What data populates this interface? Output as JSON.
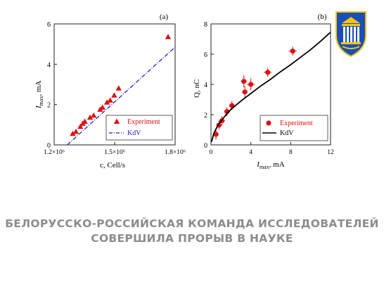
{
  "chart_data": [
    {
      "type": "scatter",
      "panel_label": "(a)",
      "xlabel": "c, Cell/s",
      "ylabel_main": "I",
      "ylabel_sub": "max",
      "ylabel_rest": ", mA",
      "xlim": [
        1200000,
        1800000
      ],
      "ylim": [
        0,
        6
      ],
      "xticks": [
        {
          "v": 1200000,
          "label": "1.2×10⁶"
        },
        {
          "v": 1500000,
          "label": "1.5×10⁶"
        },
        {
          "v": 1800000,
          "label": "1.8×10⁶"
        }
      ],
      "yticks": [
        {
          "v": 0,
          "label": "0"
        },
        {
          "v": 2,
          "label": "2"
        },
        {
          "v": 4,
          "label": "4"
        },
        {
          "v": 6,
          "label": "6"
        }
      ],
      "series": [
        {
          "name": "Experiment",
          "kind": "triangles",
          "color": "#dd1111",
          "points": [
            [
              1292000,
              0.55
            ],
            [
              1308000,
              0.65
            ],
            [
              1330000,
              0.9
            ],
            [
              1342000,
              1.05
            ],
            [
              1352000,
              1.15
            ],
            [
              1378000,
              1.35
            ],
            [
              1396000,
              1.45
            ],
            [
              1428000,
              1.75
            ],
            [
              1440000,
              1.85
            ],
            [
              1462000,
              2.1
            ],
            [
              1478000,
              2.2
            ],
            [
              1498000,
              2.45
            ],
            [
              1520000,
              2.8
            ],
            [
              1765000,
              5.35
            ]
          ]
        },
        {
          "name": "KdV",
          "kind": "dashdot-line",
          "color": "#2222cc",
          "points": [
            [
              1265000,
              0
            ],
            [
              1800000,
              4.85
            ]
          ]
        }
      ],
      "legend": "bottom-right"
    },
    {
      "type": "scatter",
      "panel_label": "(b)",
      "xlabel_main": "I",
      "xlabel_sub": "max",
      "xlabel_rest": ", mA",
      "ylabel": "Q, nC",
      "xlim": [
        0,
        12
      ],
      "ylim": [
        0,
        8
      ],
      "xticks": [
        {
          "v": 0,
          "label": "0"
        },
        {
          "v": 4,
          "label": "4"
        },
        {
          "v": 8,
          "label": "8"
        },
        {
          "v": 12,
          "label": "12"
        }
      ],
      "yticks": [
        {
          "v": 0,
          "label": "0"
        },
        {
          "v": 2,
          "label": "2"
        },
        {
          "v": 4,
          "label": "4"
        },
        {
          "v": 6,
          "label": "6"
        },
        {
          "v": 8,
          "label": "8"
        }
      ],
      "series": [
        {
          "name": "Experiment",
          "kind": "dots",
          "color": "#dd1111",
          "points": [
            [
              0.5,
              0.7,
              0.3,
              0.35
            ],
            [
              0.8,
              1.3,
              0.3,
              0.3
            ],
            [
              1.1,
              1.6,
              0.3,
              0.3
            ],
            [
              1.6,
              2.2,
              0.3,
              0.3
            ],
            [
              2.1,
              2.6,
              0.3,
              0.3
            ],
            [
              3.3,
              4.2,
              0.3,
              0.4
            ],
            [
              3.4,
              3.5,
              0.3,
              0.4
            ],
            [
              4.0,
              4.0,
              0.4,
              0.4
            ],
            [
              5.7,
              4.8,
              0.4,
              0.3
            ],
            [
              8.2,
              6.2,
              0.4,
              0.3
            ]
          ]
        },
        {
          "name": "KdV",
          "kind": "curve",
          "color": "#000000",
          "points": [
            [
              0.05,
              0.2
            ],
            [
              0.3,
              0.8
            ],
            [
              0.7,
              1.3
            ],
            [
              1.2,
              1.75
            ],
            [
              2,
              2.35
            ],
            [
              3,
              2.9
            ],
            [
              4,
              3.4
            ],
            [
              5,
              3.9
            ],
            [
              6,
              4.35
            ],
            [
              7,
              4.85
            ],
            [
              8,
              5.3
            ],
            [
              9,
              5.8
            ],
            [
              10,
              6.3
            ],
            [
              11,
              6.85
            ],
            [
              12,
              7.45
            ]
          ]
        }
      ],
      "legend": "bottom-right"
    }
  ],
  "logo": {
    "name": "city-coat-of-arms",
    "colors": [
      "#1a4fb8",
      "#f2c411",
      "#ffffff"
    ]
  },
  "headline": {
    "line1": "БЕЛОРУССКО-РОССИЙСКАЯ КОМАНДА ИССЛЕДОВАТЕЛЕЙ",
    "line2": "СОВЕРШИЛА ПРОРЫВ В НАУКЕ"
  }
}
